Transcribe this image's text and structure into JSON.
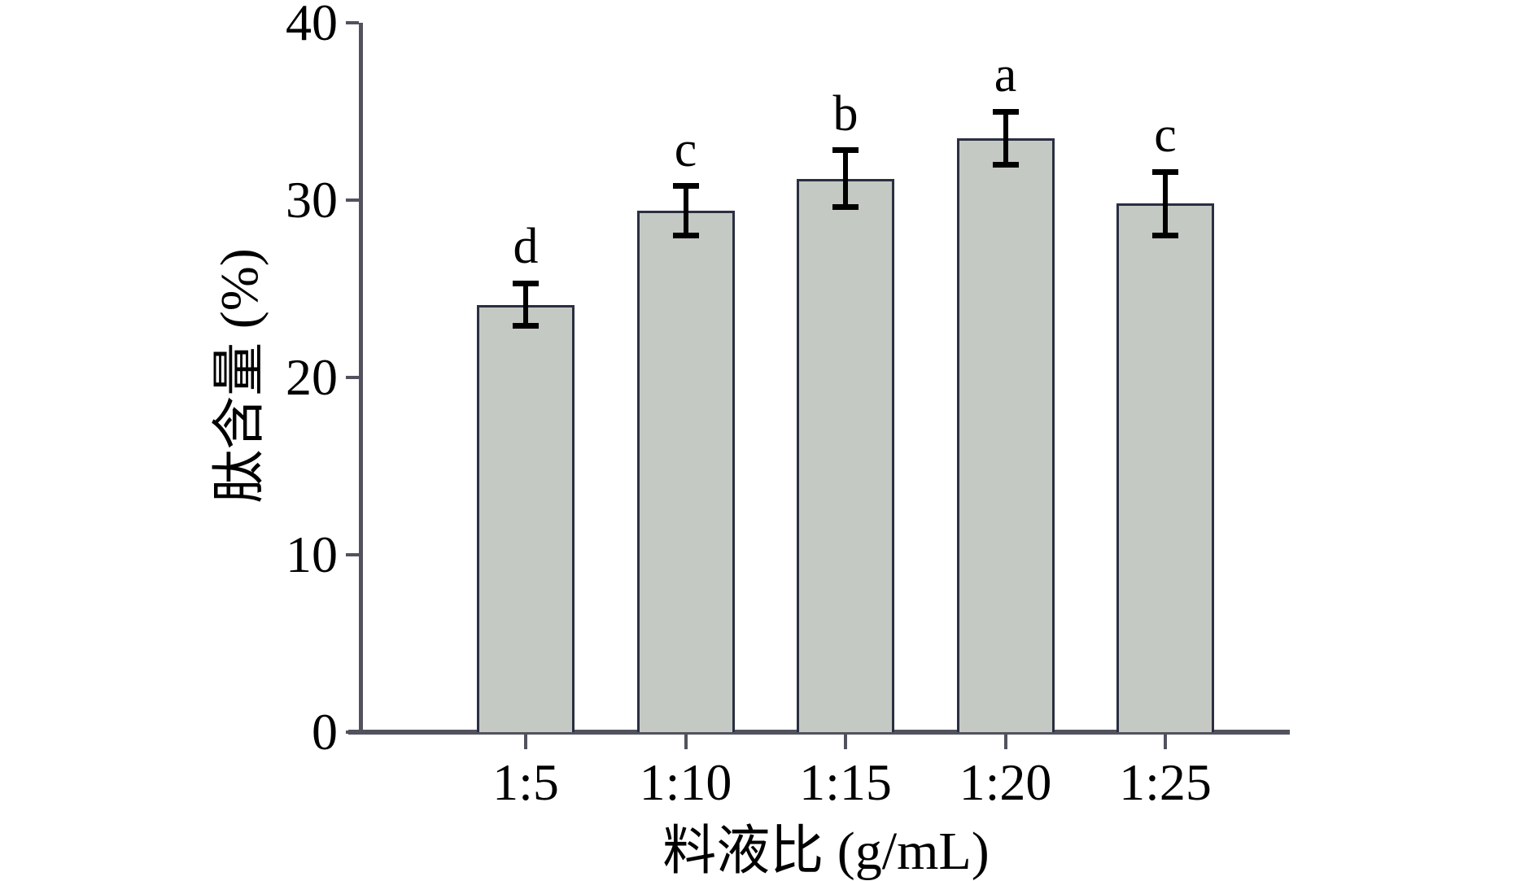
{
  "chart_data": {
    "type": "bar",
    "title": "",
    "xlabel": "料液比 (g/mL)",
    "ylabel": "肽含量 (%)",
    "categories": [
      "1:5",
      "1:10",
      "1:15",
      "1:20",
      "1:25"
    ],
    "values": [
      24.1,
      29.4,
      31.2,
      33.5,
      29.8
    ],
    "errors": [
      1.2,
      1.4,
      1.6,
      1.5,
      1.8
    ],
    "sig_letters": [
      "d",
      "c",
      "b",
      "a",
      "c"
    ],
    "y_ticks": [
      0,
      10,
      20,
      30,
      40
    ],
    "ylim": [
      0,
      40
    ],
    "grid": false,
    "legend_position": "none",
    "colors": {
      "bar_fill": "#c5c9c3",
      "bar_border": "#2a2f42",
      "axis": "#52525f",
      "error_bar": "#000000",
      "text": "#000000"
    }
  }
}
